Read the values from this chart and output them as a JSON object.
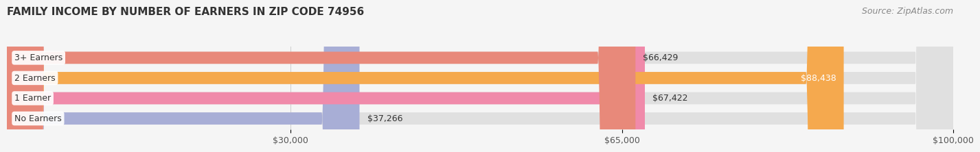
{
  "title": "FAMILY INCOME BY NUMBER OF EARNERS IN ZIP CODE 74956",
  "source": "Source: ZipAtlas.com",
  "categories": [
    "No Earners",
    "1 Earner",
    "2 Earners",
    "3+ Earners"
  ],
  "values": [
    37266,
    67422,
    88438,
    66429
  ],
  "bar_colors": [
    "#a8aed6",
    "#f08aaa",
    "#f5a94e",
    "#e8897a"
  ],
  "bar_bg_color": "#e0e0e0",
  "value_labels": [
    "$37,266",
    "$67,422",
    "$88,438",
    "$66,429"
  ],
  "x_tick_labels": [
    "$30,000",
    "$65,000",
    "$100,000"
  ],
  "x_tick_values": [
    30000,
    65000,
    100000
  ],
  "xlim": [
    0,
    100000
  ],
  "label_fontsize": 9,
  "title_fontsize": 11,
  "source_fontsize": 9,
  "background_color": "#f5f5f5"
}
